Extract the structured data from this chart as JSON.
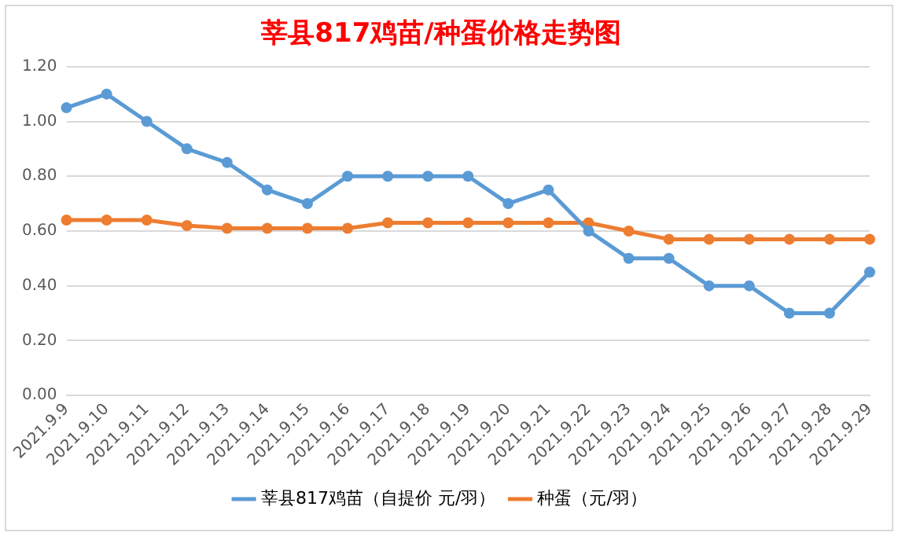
{
  "chart_data": {
    "type": "line",
    "title": "莘县817鸡苗/种蛋价格走势图",
    "categories": [
      "2021.9.9",
      "2021.9.10",
      "2021.9.11",
      "2021.9.12",
      "2021.9.13",
      "2021.9.14",
      "2021.9.15",
      "2021.9.16",
      "2021.9.17",
      "2021.9.18",
      "2021.9.19",
      "2021.9.20",
      "2021.9.21",
      "2021.9.22",
      "2021.9.23",
      "2021.9.24",
      "2021.9.25",
      "2021.9.26",
      "2021.9.27",
      "2021.9.28",
      "2021.9.29"
    ],
    "series": [
      {
        "name": "莘县817鸡苗（自提价 元/羽）",
        "color": "#5b9bd5",
        "values": [
          1.05,
          1.1,
          1.0,
          0.9,
          0.85,
          0.75,
          0.7,
          0.8,
          0.8,
          0.8,
          0.8,
          0.7,
          0.75,
          0.6,
          0.5,
          0.5,
          0.4,
          0.4,
          0.3,
          0.3,
          0.45
        ]
      },
      {
        "name": "种蛋（元/羽）",
        "color": "#ed7d31",
        "values": [
          0.64,
          0.64,
          0.64,
          0.62,
          0.61,
          0.61,
          0.61,
          0.61,
          0.63,
          0.63,
          0.63,
          0.63,
          0.63,
          0.63,
          0.6,
          0.57,
          0.57,
          0.57,
          0.57,
          0.57,
          0.57
        ]
      }
    ],
    "ylim": [
      0,
      1.2
    ],
    "yticks": [
      {
        "value": 0,
        "label": "0.00"
      },
      {
        "value": 0.2,
        "label": "0.20"
      },
      {
        "value": 0.4,
        "label": "0.40"
      },
      {
        "value": 0.6,
        "label": "0.60"
      },
      {
        "value": 0.8,
        "label": "0.80"
      },
      {
        "value": 1.0,
        "label": "1.00"
      },
      {
        "value": 1.2,
        "label": "1.20"
      }
    ],
    "grid": "y",
    "legend": "bottom",
    "marker": "circle",
    "line_style": "solid"
  }
}
